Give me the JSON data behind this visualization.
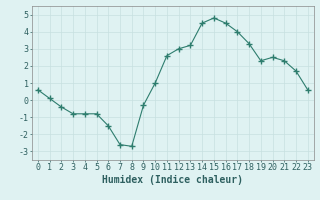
{
  "x": [
    0,
    1,
    2,
    3,
    4,
    5,
    6,
    7,
    8,
    9,
    10,
    11,
    12,
    13,
    14,
    15,
    16,
    17,
    18,
    19,
    20,
    21,
    22,
    23
  ],
  "y": [
    0.6,
    0.1,
    -0.4,
    -0.8,
    -0.8,
    -0.8,
    -1.5,
    -2.6,
    -2.7,
    -0.3,
    1.0,
    2.6,
    3.0,
    3.2,
    4.5,
    4.8,
    4.5,
    4.0,
    3.3,
    2.3,
    2.5,
    2.3,
    1.7,
    0.6
  ],
  "line_color": "#2e7d6e",
  "marker": "+",
  "marker_size": 4,
  "bg_color": "#dff2f2",
  "grid_color": "#c8e0e0",
  "xlabel": "Humidex (Indice chaleur)",
  "xlim": [
    -0.5,
    23.5
  ],
  "ylim": [
    -3.5,
    5.5
  ],
  "yticks": [
    -3,
    -2,
    -1,
    0,
    1,
    2,
    3,
    4,
    5
  ],
  "xticks": [
    0,
    1,
    2,
    3,
    4,
    5,
    6,
    7,
    8,
    9,
    10,
    11,
    12,
    13,
    14,
    15,
    16,
    17,
    18,
    19,
    20,
    21,
    22,
    23
  ],
  "tick_label_fontsize": 6,
  "xlabel_fontsize": 7
}
